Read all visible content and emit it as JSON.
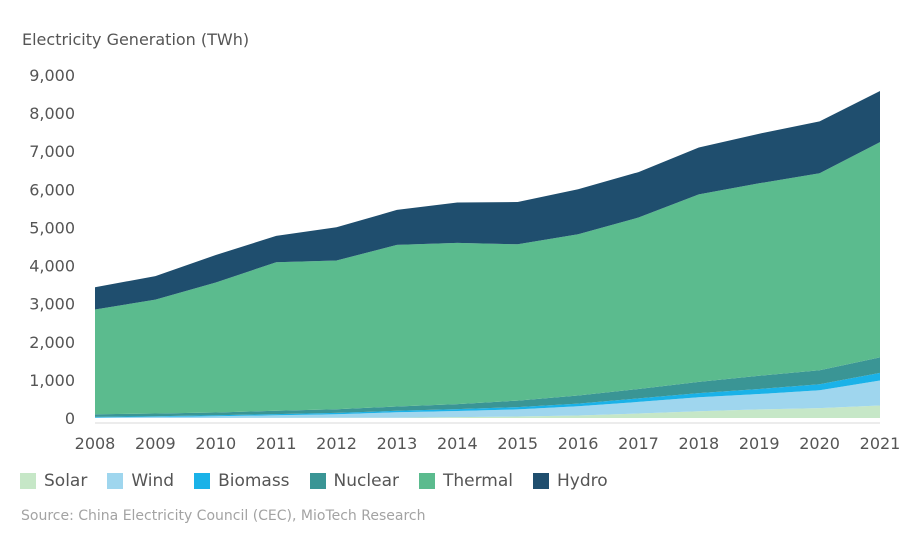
{
  "chart_data": {
    "type": "area",
    "stacked": true,
    "ylabel": "Electricity Generation (TWh)",
    "xlabel": "",
    "ylim": [
      0,
      9000
    ],
    "yticks": [
      0,
      1000,
      2000,
      3000,
      4000,
      5000,
      6000,
      7000,
      8000,
      9000
    ],
    "ytick_labels": [
      "0",
      "1,000",
      "2,000",
      "3,000",
      "4,000",
      "5,000",
      "6,000",
      "7,000",
      "8,000",
      "9,000"
    ],
    "x": [
      2008,
      2009,
      2010,
      2011,
      2012,
      2013,
      2014,
      2015,
      2016,
      2017,
      2018,
      2019,
      2020,
      2021
    ],
    "xtick_labels": [
      "2008",
      "2009",
      "2010",
      "2011",
      "2012",
      "2013",
      "2014",
      "2015",
      "2016",
      "2017",
      "2018",
      "2019",
      "2020",
      "2021"
    ],
    "grid": false,
    "legend_position": "bottom-left",
    "series": [
      {
        "name": "Solar",
        "color": "#c6e7c7",
        "values": [
          0,
          0,
          1,
          3,
          4,
          8,
          23,
          40,
          66,
          118,
          178,
          225,
          261,
          327
        ]
      },
      {
        "name": "Wind",
        "color": "#9fd6ee",
        "values": [
          13,
          28,
          45,
          70,
          96,
          141,
          160,
          186,
          241,
          305,
          366,
          406,
          466,
          656
        ]
      },
      {
        "name": "Biomass",
        "color": "#1ab2e8",
        "values": [
          15,
          20,
          25,
          30,
          35,
          40,
          50,
          60,
          70,
          90,
          110,
          130,
          160,
          200
        ]
      },
      {
        "name": "Nuclear",
        "color": "#3a9595",
        "values": [
          68,
          70,
          74,
          86,
          97,
          112,
          132,
          171,
          213,
          248,
          294,
          348,
          366,
          407
        ]
      },
      {
        "name": "Thermal",
        "color": "#5bbb8e",
        "values": [
          2750,
          2990,
          3410,
          3900,
          3900,
          4240,
          4230,
          4100,
          4230,
          4500,
          4920,
          5050,
          5170,
          5650
        ]
      },
      {
        "name": "Hydro",
        "color": "#1f4e6e",
        "values": [
          585,
          616,
          722,
          690,
          872,
          920,
          1060,
          1110,
          1180,
          1190,
          1230,
          1300,
          1360,
          1340
        ]
      }
    ],
    "source": "Source: China Electricity Council (CEC), MioTech Research"
  }
}
